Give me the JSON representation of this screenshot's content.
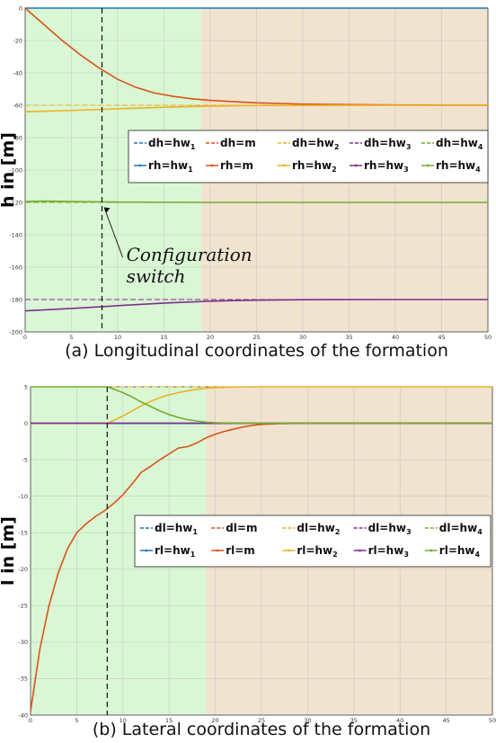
{
  "chart_data": [
    {
      "type": "line",
      "caption": "(a) Longitudinal coordinates of the formation",
      "ylabel": "h in [m]",
      "xlim": [
        0,
        50
      ],
      "ylim": [
        -200,
        0
      ],
      "xticks": [
        0,
        5,
        10,
        15,
        20,
        25,
        30,
        35,
        40,
        45,
        50
      ],
      "yticks": [
        0,
        -20,
        -40,
        -60,
        -80,
        -100,
        -120,
        -140,
        -160,
        -180,
        -200
      ],
      "grid": true,
      "phase_regions": [
        {
          "from": 0,
          "to": 19,
          "color": "#d9f7d4"
        },
        {
          "from": 19,
          "to": 50,
          "color": "#f0e3cf"
        }
      ],
      "switch_x": 8.3,
      "annotation": {
        "line1": "Configuration",
        "line2": "switch",
        "x": 8.6,
        "y": -154
      },
      "legend": {
        "placement": "center-right",
        "entries": [
          {
            "base": "dh=hw",
            "sub": "1",
            "color": "#1f77b4",
            "style": "dashed"
          },
          {
            "base": "dh=m",
            "sub": "",
            "color": "#d95319",
            "style": "dashed"
          },
          {
            "base": "dh=hw",
            "sub": "2",
            "color": "#edb120",
            "style": "dashed"
          },
          {
            "base": "dh=hw",
            "sub": "3",
            "color": "#7e2f8e",
            "style": "dashed"
          },
          {
            "base": "dh=hw",
            "sub": "4",
            "color": "#77ac30",
            "style": "dashed"
          },
          {
            "base": "rh=hw",
            "sub": "1",
            "color": "#1f77b4",
            "style": "solid"
          },
          {
            "base": "rh=m",
            "sub": "",
            "color": "#d95319",
            "style": "solid"
          },
          {
            "base": "rh=hw",
            "sub": "2",
            "color": "#edb120",
            "style": "solid"
          },
          {
            "base": "rh=hw",
            "sub": "3",
            "color": "#7e2f8e",
            "style": "solid"
          },
          {
            "base": "rh=hw",
            "sub": "4",
            "color": "#77ac30",
            "style": "solid"
          }
        ]
      },
      "series": [
        {
          "color": "#1f77b4",
          "style": "dashed",
          "x": [
            0,
            50
          ],
          "y": [
            0,
            0
          ]
        },
        {
          "color": "#d95319",
          "style": "dashed",
          "x": [
            0,
            50
          ],
          "y": [
            -60,
            -60
          ]
        },
        {
          "color": "#edb120",
          "style": "dashed",
          "x": [
            0,
            50
          ],
          "y": [
            -60,
            -60
          ]
        },
        {
          "color": "#7e2f8e",
          "style": "dashed",
          "x": [
            0,
            50
          ],
          "y": [
            -180,
            -180
          ]
        },
        {
          "color": "#77ac30",
          "style": "dashed",
          "x": [
            0,
            50
          ],
          "y": [
            -120,
            -120
          ]
        },
        {
          "color": "#1f77b4",
          "style": "solid",
          "x": [
            0,
            50
          ],
          "y": [
            0,
            0
          ]
        },
        {
          "color": "#d95319",
          "style": "solid",
          "x": [
            0,
            2,
            4,
            6,
            8,
            10,
            12,
            14,
            16,
            18,
            20,
            25,
            30,
            40,
            50
          ],
          "y": [
            0,
            -10,
            -20,
            -29,
            -37,
            -44,
            -49,
            -52.5,
            -54.5,
            -56,
            -57,
            -58.5,
            -59.3,
            -59.8,
            -60
          ]
        },
        {
          "color": "#edb120",
          "style": "solid",
          "x": [
            0,
            5,
            10,
            15,
            20,
            25,
            30,
            40,
            50
          ],
          "y": [
            -64,
            -63.2,
            -62.2,
            -61.2,
            -60.5,
            -60.2,
            -60.1,
            -60,
            -60
          ]
        },
        {
          "color": "#7e2f8e",
          "style": "solid",
          "x": [
            0,
            5,
            10,
            15,
            20,
            25,
            30,
            40,
            50
          ],
          "y": [
            -187,
            -185.5,
            -183.8,
            -182.2,
            -181,
            -180.4,
            -180.1,
            -180,
            -180
          ]
        },
        {
          "color": "#77ac30",
          "style": "solid",
          "x": [
            0,
            2,
            5,
            10,
            20,
            50
          ],
          "y": [
            -119.5,
            -119.2,
            -119.5,
            -119.8,
            -120,
            -120
          ]
        }
      ]
    },
    {
      "type": "line",
      "caption": "(b) Lateral coordinates of the formation",
      "ylabel": "l in [m]",
      "xlim": [
        0,
        50
      ],
      "ylim": [
        -40,
        5
      ],
      "xticks": [
        0,
        5,
        10,
        15,
        20,
        25,
        30,
        35,
        40,
        45,
        50
      ],
      "yticks": [
        5,
        0,
        -5,
        -10,
        -15,
        -20,
        -25,
        -30,
        -35,
        -40
      ],
      "grid": true,
      "phase_regions": [
        {
          "from": 0,
          "to": 19,
          "color": "#d9f7d4"
        },
        {
          "from": 19,
          "to": 50,
          "color": "#f0e3cf"
        }
      ],
      "switch_x": 8.3,
      "legend": {
        "placement": "center-right",
        "entries": [
          {
            "base": "dl=hw",
            "sub": "1",
            "color": "#1f77b4",
            "style": "dashed"
          },
          {
            "base": "dl=m",
            "sub": "",
            "color": "#d95319",
            "style": "dashed"
          },
          {
            "base": "dl=hw",
            "sub": "2",
            "color": "#edb120",
            "style": "dashed"
          },
          {
            "base": "dl=hw",
            "sub": "3",
            "color": "#7e2f8e",
            "style": "dashed"
          },
          {
            "base": "dl=hw",
            "sub": "4",
            "color": "#77ac30",
            "style": "dashed"
          },
          {
            "base": "rl=hw",
            "sub": "1",
            "color": "#1f77b4",
            "style": "solid"
          },
          {
            "base": "rl=m",
            "sub": "",
            "color": "#d95319",
            "style": "solid"
          },
          {
            "base": "rl=hw",
            "sub": "2",
            "color": "#edb120",
            "style": "solid"
          },
          {
            "base": "rl=hw",
            "sub": "3",
            "color": "#7e2f8e",
            "style": "solid"
          },
          {
            "base": "rl=hw",
            "sub": "4",
            "color": "#77ac30",
            "style": "solid"
          }
        ]
      },
      "series": [
        {
          "color": "#1f77b4",
          "style": "dashed",
          "x": [
            0,
            50
          ],
          "y": [
            0,
            0
          ]
        },
        {
          "color": "#d95319",
          "style": "dashed",
          "x": [
            0,
            50
          ],
          "y": [
            0,
            0
          ]
        },
        {
          "color": "#edb120",
          "style": "dashed",
          "x": [
            0,
            50
          ],
          "y": [
            5,
            5
          ]
        },
        {
          "color": "#7e2f8e",
          "style": "dashed",
          "x": [
            0,
            50
          ],
          "y": [
            0,
            0
          ]
        },
        {
          "color": "#77ac30",
          "style": "dashed",
          "x": [
            0,
            50
          ],
          "y": [
            0,
            0
          ]
        },
        {
          "color": "#1f77b4",
          "style": "solid",
          "x": [
            0,
            50
          ],
          "y": [
            0,
            0
          ]
        },
        {
          "color": "#d95319",
          "style": "solid",
          "x": [
            0,
            1,
            2,
            3,
            4,
            5,
            6,
            7,
            8,
            9,
            10,
            11,
            12,
            13,
            14,
            15,
            16,
            17,
            18,
            19,
            20,
            21,
            22,
            23,
            24,
            25,
            27,
            30,
            35,
            50
          ],
          "y": [
            -39.5,
            -31,
            -25,
            -20.5,
            -17.2,
            -15,
            -13.8,
            -12.8,
            -12,
            -11,
            -9.8,
            -8.3,
            -6.7,
            -5.9,
            -5,
            -4.2,
            -3.4,
            -3.2,
            -2.7,
            -2,
            -1.5,
            -1.1,
            -0.8,
            -0.5,
            -0.3,
            -0.15,
            -0.05,
            0,
            0,
            0
          ]
        },
        {
          "color": "#edb120",
          "style": "solid",
          "x": [
            0,
            8.3,
            9,
            10,
            11,
            12,
            13,
            14,
            15,
            16,
            17,
            18,
            19,
            20,
            22,
            25,
            30,
            50
          ],
          "y": [
            0,
            0,
            0.4,
            1,
            1.7,
            2.4,
            3,
            3.5,
            3.9,
            4.2,
            4.45,
            4.65,
            4.8,
            4.9,
            4.97,
            5,
            5,
            5
          ]
        },
        {
          "color": "#7e2f8e",
          "style": "solid",
          "x": [
            0,
            50
          ],
          "y": [
            0,
            0
          ]
        },
        {
          "color": "#77ac30",
          "style": "solid",
          "x": [
            0,
            8.3,
            9,
            10,
            11,
            12,
            13,
            14,
            15,
            16,
            17,
            18,
            19,
            20,
            22,
            25,
            50
          ],
          "y": [
            5,
            5,
            4.7,
            4.2,
            3.6,
            2.9,
            2.3,
            1.7,
            1.2,
            0.8,
            0.5,
            0.3,
            0.15,
            0.08,
            0.02,
            0,
            0
          ]
        }
      ]
    }
  ]
}
